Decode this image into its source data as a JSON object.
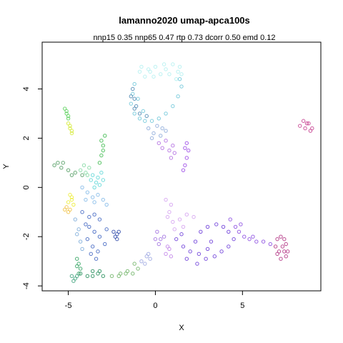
{
  "chart_data": {
    "type": "scatter",
    "title": "lamanno2020 umap-apca100s",
    "subtitle": "nnp15 0.35 nnp65 0.47 rtp 0.73 dcorr 0.50 emd 0.12",
    "xlabel": "X",
    "ylabel": "Y",
    "xlim": [
      -6.5,
      9.5
    ],
    "ylim": [
      -4.2,
      5.9
    ],
    "x_ticks": [
      -5,
      0,
      5
    ],
    "y_ticks": [
      -4,
      -2,
      0,
      2,
      4
    ],
    "grid": false,
    "legend": "none",
    "clusters": [
      {
        "color": "#b0f0f0",
        "points": [
          [
            -0.8,
            4.9
          ],
          [
            -0.4,
            4.8
          ],
          [
            0.0,
            4.9
          ],
          [
            0.5,
            5.0
          ],
          [
            1.0,
            5.0
          ],
          [
            1.4,
            4.9
          ],
          [
            1.5,
            4.6
          ],
          [
            1.2,
            4.4
          ],
          [
            0.8,
            4.6
          ],
          [
            0.3,
            4.6
          ],
          [
            -0.1,
            4.5
          ],
          [
            -0.6,
            4.5
          ],
          [
            -0.9,
            4.7
          ],
          [
            0.6,
            4.8
          ],
          [
            1.3,
            4.7
          ],
          [
            -0.3,
            4.7
          ]
        ]
      },
      {
        "color": "#6cc6d8",
        "points": [
          [
            -1.2,
            4.2
          ],
          [
            -1.3,
            3.8
          ],
          [
            -1.4,
            3.4
          ],
          [
            -1.2,
            3.0
          ],
          [
            -0.9,
            2.8
          ],
          [
            -0.6,
            2.7
          ],
          [
            -0.2,
            2.7
          ],
          [
            0.2,
            2.8
          ],
          [
            0.6,
            3.0
          ],
          [
            1.0,
            3.3
          ],
          [
            1.3,
            3.7
          ],
          [
            1.5,
            4.1
          ],
          [
            1.4,
            4.4
          ],
          [
            -1.0,
            3.6
          ],
          [
            -0.7,
            3.1
          ]
        ]
      },
      {
        "color": "#4a86b0",
        "points": [
          [
            -1.3,
            4.0
          ],
          [
            -1.2,
            3.6
          ],
          [
            -1.1,
            3.3
          ],
          [
            -0.9,
            3.0
          ],
          [
            -0.5,
            2.9
          ],
          [
            -1.4,
            3.7
          ],
          [
            -1.2,
            3.2
          ]
        ]
      },
      {
        "color": "#8aa8d8",
        "points": [
          [
            -0.4,
            2.4
          ],
          [
            -0.1,
            2.2
          ],
          [
            0.3,
            2.1
          ],
          [
            0.6,
            2.3
          ],
          [
            0.1,
            2.5
          ],
          [
            -0.2,
            2.0
          ],
          [
            0.4,
            2.4
          ]
        ]
      },
      {
        "color": "#b06ae0",
        "points": [
          [
            0.2,
            1.8
          ],
          [
            0.4,
            1.6
          ],
          [
            0.8,
            1.5
          ],
          [
            1.1,
            1.4
          ],
          [
            0.6,
            1.9
          ],
          [
            1.0,
            1.7
          ],
          [
            0.9,
            1.2
          ]
        ]
      },
      {
        "color": "#9a45e6",
        "points": [
          [
            1.8,
            1.8
          ],
          [
            1.9,
            1.5
          ],
          [
            1.8,
            1.2
          ],
          [
            1.7,
            0.9
          ],
          [
            1.6,
            0.7
          ],
          [
            1.7,
            1.6
          ]
        ]
      },
      {
        "color": "#c43a8c",
        "points": [
          [
            8.5,
            2.7
          ],
          [
            8.8,
            2.6
          ],
          [
            9.0,
            2.4
          ],
          [
            8.6,
            2.4
          ],
          [
            8.3,
            2.5
          ],
          [
            8.9,
            2.3
          ],
          [
            8.7,
            2.6
          ]
        ]
      },
      {
        "color": "#58d058",
        "points": [
          [
            -5.2,
            3.2
          ],
          [
            -5.1,
            3.0
          ],
          [
            -5.0,
            2.8
          ],
          [
            -5.1,
            3.1
          ],
          [
            -5.0,
            2.9
          ]
        ]
      },
      {
        "color": "#d4ea30",
        "points": [
          [
            -5.0,
            2.6
          ],
          [
            -4.9,
            2.4
          ],
          [
            -4.8,
            2.2
          ],
          [
            -4.9,
            2.5
          ],
          [
            -4.8,
            2.3
          ]
        ]
      },
      {
        "color": "#3ab84a",
        "points": [
          [
            -2.9,
            2.1
          ],
          [
            -3.0,
            1.7
          ],
          [
            -3.1,
            1.3
          ],
          [
            -3.2,
            1.0
          ],
          [
            -3.0,
            1.5
          ],
          [
            -3.1,
            1.9
          ]
        ]
      },
      {
        "color": "#4e9a5e",
        "points": [
          [
            -5.6,
            1.0
          ],
          [
            -5.4,
            0.8
          ],
          [
            -5.0,
            0.7
          ],
          [
            -4.6,
            0.6
          ],
          [
            -4.2,
            0.5
          ],
          [
            -5.8,
            0.9
          ],
          [
            -5.3,
            1.0
          ],
          [
            -4.8,
            0.5
          ]
        ]
      },
      {
        "color": "#80d8a0",
        "points": [
          [
            -4.3,
            0.7
          ],
          [
            -4.0,
            0.6
          ],
          [
            -3.8,
            0.8
          ],
          [
            -4.1,
            0.9
          ],
          [
            -3.9,
            0.5
          ]
        ]
      },
      {
        "color": "#5ad6d6",
        "points": [
          [
            -3.6,
            0.5
          ],
          [
            -3.3,
            0.4
          ],
          [
            -3.0,
            0.3
          ],
          [
            -3.4,
            0.2
          ],
          [
            -3.1,
            0.6
          ],
          [
            -3.7,
            0.3
          ],
          [
            -3.2,
            0.1
          ],
          [
            -3.5,
            0.0
          ]
        ]
      },
      {
        "color": "#80b8e8",
        "points": [
          [
            -4.2,
            0.0
          ],
          [
            -3.9,
            -0.2
          ],
          [
            -3.6,
            -0.4
          ],
          [
            -3.3,
            -0.3
          ],
          [
            -3.0,
            -0.5
          ],
          [
            -2.8,
            -0.7
          ],
          [
            -3.5,
            -0.6
          ],
          [
            -4.0,
            -0.5
          ]
        ]
      },
      {
        "color": "#ecec30",
        "points": [
          [
            -4.9,
            -0.3
          ],
          [
            -4.8,
            -0.5
          ],
          [
            -5.0,
            -0.6
          ],
          [
            -4.7,
            -0.7
          ],
          [
            -4.8,
            -0.4
          ]
        ]
      },
      {
        "color": "#f0c040",
        "points": [
          [
            -5.1,
            -0.8
          ],
          [
            -5.0,
            -1.0
          ],
          [
            -4.9,
            -0.9
          ],
          [
            -5.2,
            -0.9
          ]
        ]
      },
      {
        "color": "#3c62c0",
        "points": [
          [
            -4.2,
            -1.0
          ],
          [
            -3.8,
            -1.2
          ],
          [
            -3.5,
            -1.1
          ],
          [
            -3.2,
            -1.3
          ],
          [
            -3.8,
            -1.6
          ],
          [
            -3.5,
            -1.8
          ],
          [
            -3.2,
            -2.0
          ],
          [
            -3.9,
            -2.1
          ],
          [
            -3.6,
            -2.4
          ],
          [
            -3.3,
            -2.6
          ],
          [
            -2.9,
            -2.3
          ],
          [
            -2.8,
            -1.7
          ],
          [
            -4.0,
            -1.5
          ],
          [
            -3.4,
            -2.9
          ],
          [
            -3.7,
            -2.7
          ]
        ]
      },
      {
        "color": "#2a45a8",
        "points": [
          [
            -2.4,
            -1.8
          ],
          [
            -2.2,
            -1.9
          ],
          [
            -2.3,
            -2.0
          ],
          [
            -2.1,
            -1.8
          ],
          [
            -2.2,
            -2.1
          ]
        ]
      },
      {
        "color": "#78a8d8",
        "points": [
          [
            -4.6,
            -1.3
          ],
          [
            -4.4,
            -1.7
          ],
          [
            -4.3,
            -2.2
          ],
          [
            -4.5,
            -1.9
          ],
          [
            -4.2,
            -2.5
          ]
        ]
      },
      {
        "color": "#2aa05a",
        "points": [
          [
            -4.5,
            -2.9
          ],
          [
            -4.4,
            -3.1
          ],
          [
            -4.3,
            -3.3
          ],
          [
            -4.4,
            -3.5
          ],
          [
            -4.5,
            -3.2
          ]
        ]
      },
      {
        "color": "#1e8a56",
        "points": [
          [
            -4.3,
            -3.5
          ],
          [
            -3.9,
            -3.6
          ],
          [
            -3.6,
            -3.4
          ],
          [
            -3.3,
            -3.5
          ],
          [
            -3.0,
            -3.6
          ],
          [
            -3.6,
            -3.6
          ],
          [
            -3.2,
            -3.4
          ]
        ]
      },
      {
        "color": "#3aa078",
        "points": [
          [
            -4.8,
            -3.6
          ],
          [
            -4.6,
            -3.7
          ],
          [
            -4.7,
            -3.8
          ],
          [
            -4.5,
            -3.6
          ]
        ]
      },
      {
        "color": "#6ab060",
        "points": [
          [
            -2.5,
            -3.6
          ],
          [
            -2.1,
            -3.6
          ],
          [
            -1.7,
            -3.5
          ],
          [
            -1.3,
            -3.5
          ],
          [
            -1.0,
            -3.3
          ],
          [
            -1.2,
            -3.1
          ],
          [
            -1.6,
            -3.4
          ],
          [
            -2.0,
            -3.5
          ]
        ]
      },
      {
        "color": "#9aa4e0",
        "points": [
          [
            -0.8,
            -3.0
          ],
          [
            -0.5,
            -2.8
          ],
          [
            -0.3,
            -2.9
          ],
          [
            -0.6,
            -3.1
          ],
          [
            -0.4,
            -2.7
          ]
        ]
      },
      {
        "color": "#d4a0f0",
        "points": [
          [
            0.6,
            -0.5
          ],
          [
            0.8,
            -1.0
          ],
          [
            1.0,
            -1.4
          ],
          [
            1.4,
            -1.3
          ],
          [
            1.8,
            -1.1
          ],
          [
            2.2,
            -1.2
          ],
          [
            1.1,
            -1.7
          ],
          [
            0.7,
            -1.2
          ],
          [
            0.9,
            -0.7
          ],
          [
            1.6,
            -1.6
          ]
        ]
      },
      {
        "color": "#a06ee0",
        "points": [
          [
            0.1,
            -1.8
          ],
          [
            0.3,
            -2.1
          ],
          [
            0.2,
            -2.3
          ],
          [
            0.5,
            -2.0
          ],
          [
            0.0,
            -2.1
          ]
        ]
      },
      {
        "color": "#6a3ad8",
        "points": [
          [
            1.2,
            -2.1
          ],
          [
            1.6,
            -2.4
          ],
          [
            2.0,
            -2.6
          ],
          [
            2.5,
            -2.7
          ],
          [
            3.0,
            -2.5
          ],
          [
            3.4,
            -2.8
          ],
          [
            3.8,
            -2.6
          ],
          [
            4.2,
            -2.4
          ],
          [
            4.5,
            -2.1
          ],
          [
            4.2,
            -1.8
          ],
          [
            3.9,
            -1.6
          ],
          [
            3.5,
            -1.5
          ],
          [
            3.0,
            -1.6
          ],
          [
            2.6,
            -1.8
          ],
          [
            2.3,
            -2.2
          ],
          [
            1.8,
            -2.9
          ],
          [
            2.4,
            -3.1
          ],
          [
            2.9,
            -2.9
          ],
          [
            3.2,
            -2.2
          ],
          [
            1.5,
            -1.9
          ]
        ]
      },
      {
        "color": "#8a4ae0",
        "points": [
          [
            4.3,
            -1.3
          ],
          [
            4.6,
            -1.6
          ],
          [
            4.8,
            -1.8
          ],
          [
            5.1,
            -2.0
          ],
          [
            5.4,
            -2.1
          ],
          [
            5.8,
            -2.2
          ],
          [
            6.2,
            -2.2
          ],
          [
            6.6,
            -2.3
          ],
          [
            5.6,
            -2.0
          ],
          [
            4.9,
            -1.5
          ]
        ]
      },
      {
        "color": "#b02e80",
        "points": [
          [
            7.0,
            -2.1
          ],
          [
            7.2,
            -2.0
          ],
          [
            7.4,
            -2.1
          ],
          [
            7.5,
            -2.3
          ],
          [
            7.6,
            -2.6
          ],
          [
            7.5,
            -2.8
          ],
          [
            7.2,
            -2.9
          ],
          [
            7.0,
            -2.7
          ],
          [
            6.9,
            -2.4
          ],
          [
            7.3,
            -2.4
          ],
          [
            7.1,
            -2.6
          ],
          [
            7.4,
            -2.6
          ]
        ]
      },
      {
        "color": "#c080e8",
        "points": [
          [
            0.8,
            -2.5
          ],
          [
            0.6,
            -2.7
          ],
          [
            0.9,
            -2.8
          ],
          [
            0.7,
            -2.4
          ]
        ]
      }
    ]
  }
}
